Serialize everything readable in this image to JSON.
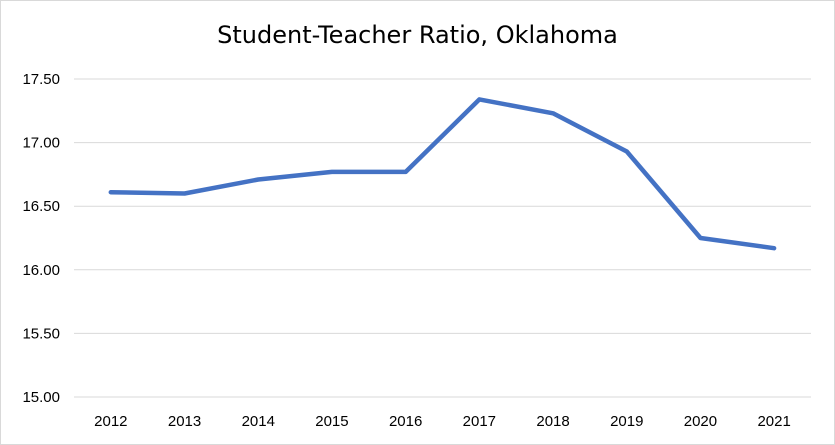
{
  "chart_data": {
    "type": "line",
    "title": "Student-Teacher Ratio, Oklahoma",
    "xlabel": "",
    "ylabel": "",
    "categories": [
      "2012",
      "2013",
      "2014",
      "2015",
      "2016",
      "2017",
      "2018",
      "2019",
      "2020",
      "2021"
    ],
    "series": [
      {
        "values": [
          16.61,
          16.6,
          16.71,
          16.77,
          16.77,
          17.34,
          17.23,
          16.93,
          16.25,
          16.17
        ],
        "color": "#4472c4"
      }
    ],
    "ylim": [
      15.0,
      17.5
    ],
    "yticks": [
      "15.00",
      "15.50",
      "16.00",
      "16.50",
      "17.00",
      "17.50"
    ],
    "grid": true,
    "gridline_color": "#d9d9d9",
    "legend": "none"
  }
}
